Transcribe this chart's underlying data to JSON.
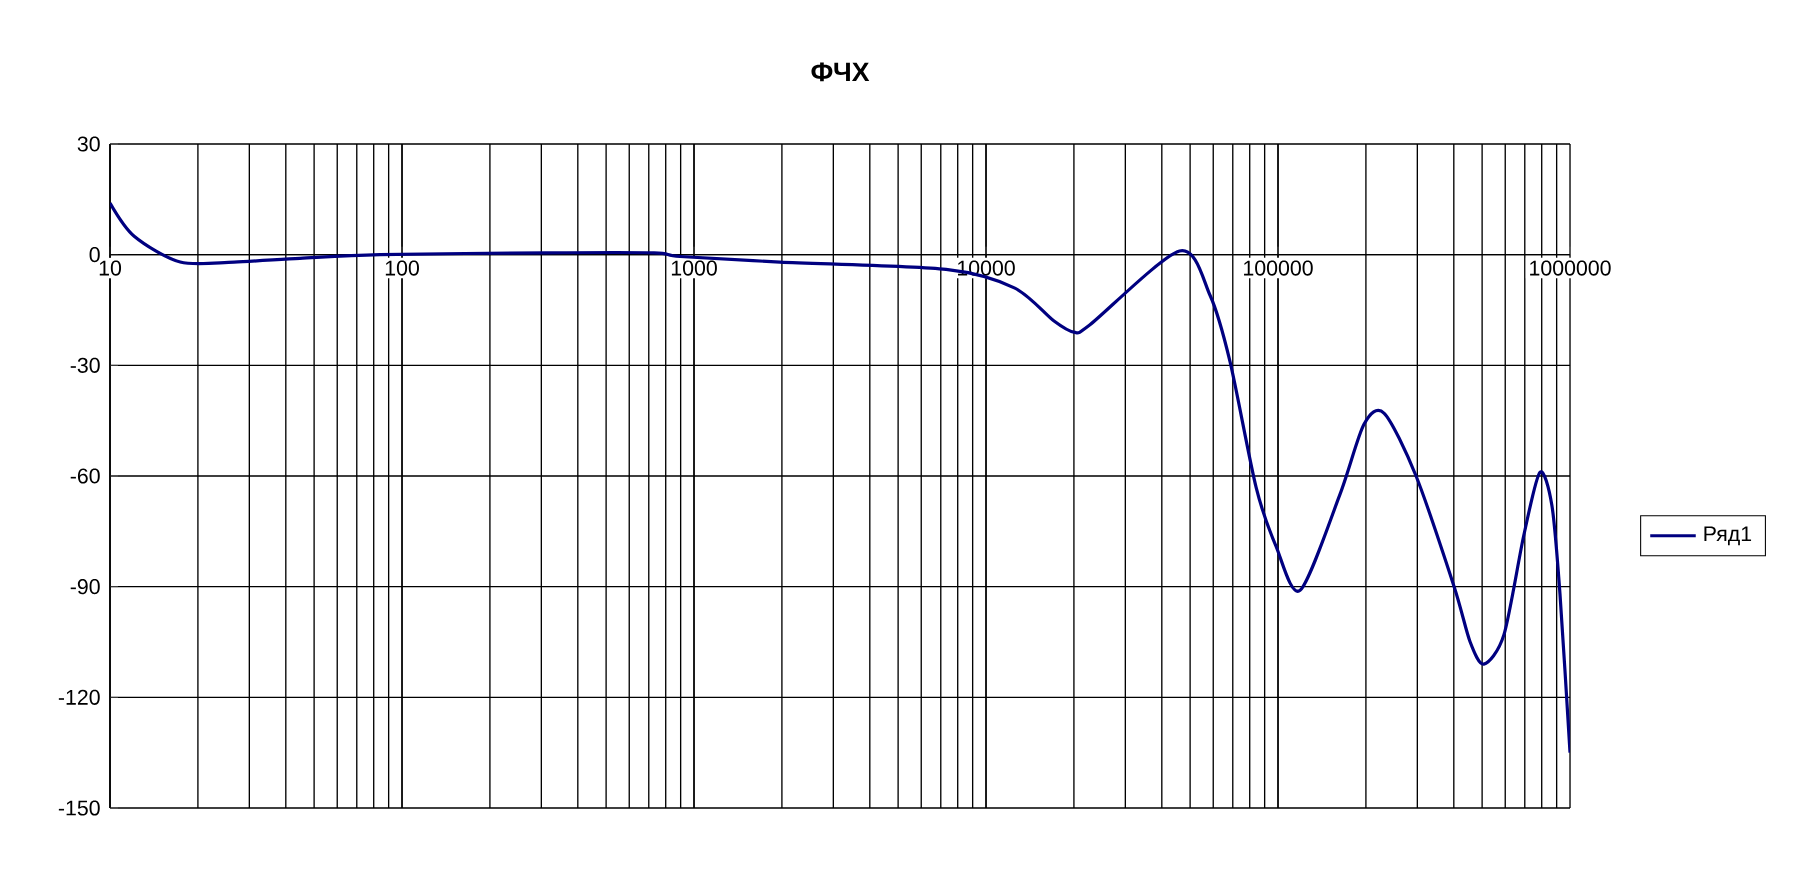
{
  "chart_data": {
    "type": "line",
    "title": "ФЧХ",
    "x": [
      10,
      12.1,
      17.4,
      26.6,
      44.7,
      84,
      311,
      730,
      896,
      1970,
      7300,
      12500,
      17100,
      20000,
      22700,
      46000,
      58500,
      68500,
      84100,
      98400,
      119000,
      163000,
      197000,
      231000,
      297000,
      401000,
      455000,
      507000,
      594000,
      695000,
      789000,
      867000,
      924000,
      1000000
    ],
    "series": [
      {
        "name": "Ряд1",
        "color": "#000080",
        "values": [
          14,
          5,
          -2,
          -2,
          -1,
          0,
          0.5,
          0.5,
          -0.5,
          -2,
          -4,
          -9,
          -18,
          -21,
          -19,
          1,
          -11,
          -29,
          -63,
          -79,
          -91,
          -65,
          -46,
          -43,
          -60,
          -90,
          -105,
          -111,
          -103,
          -76,
          -59,
          -68,
          -92,
          -135
        ]
      }
    ],
    "xlim": [
      10,
      1000000
    ],
    "ylim": [
      -150,
      30
    ],
    "xticks": [
      10,
      100,
      1000,
      10000,
      100000,
      1000000
    ],
    "yticks": [
      -150,
      -120,
      -90,
      -60,
      -30,
      0,
      30
    ],
    "log": "x",
    "grid": true,
    "legend": "right",
    "marker": "none",
    "line_style": "solid"
  }
}
